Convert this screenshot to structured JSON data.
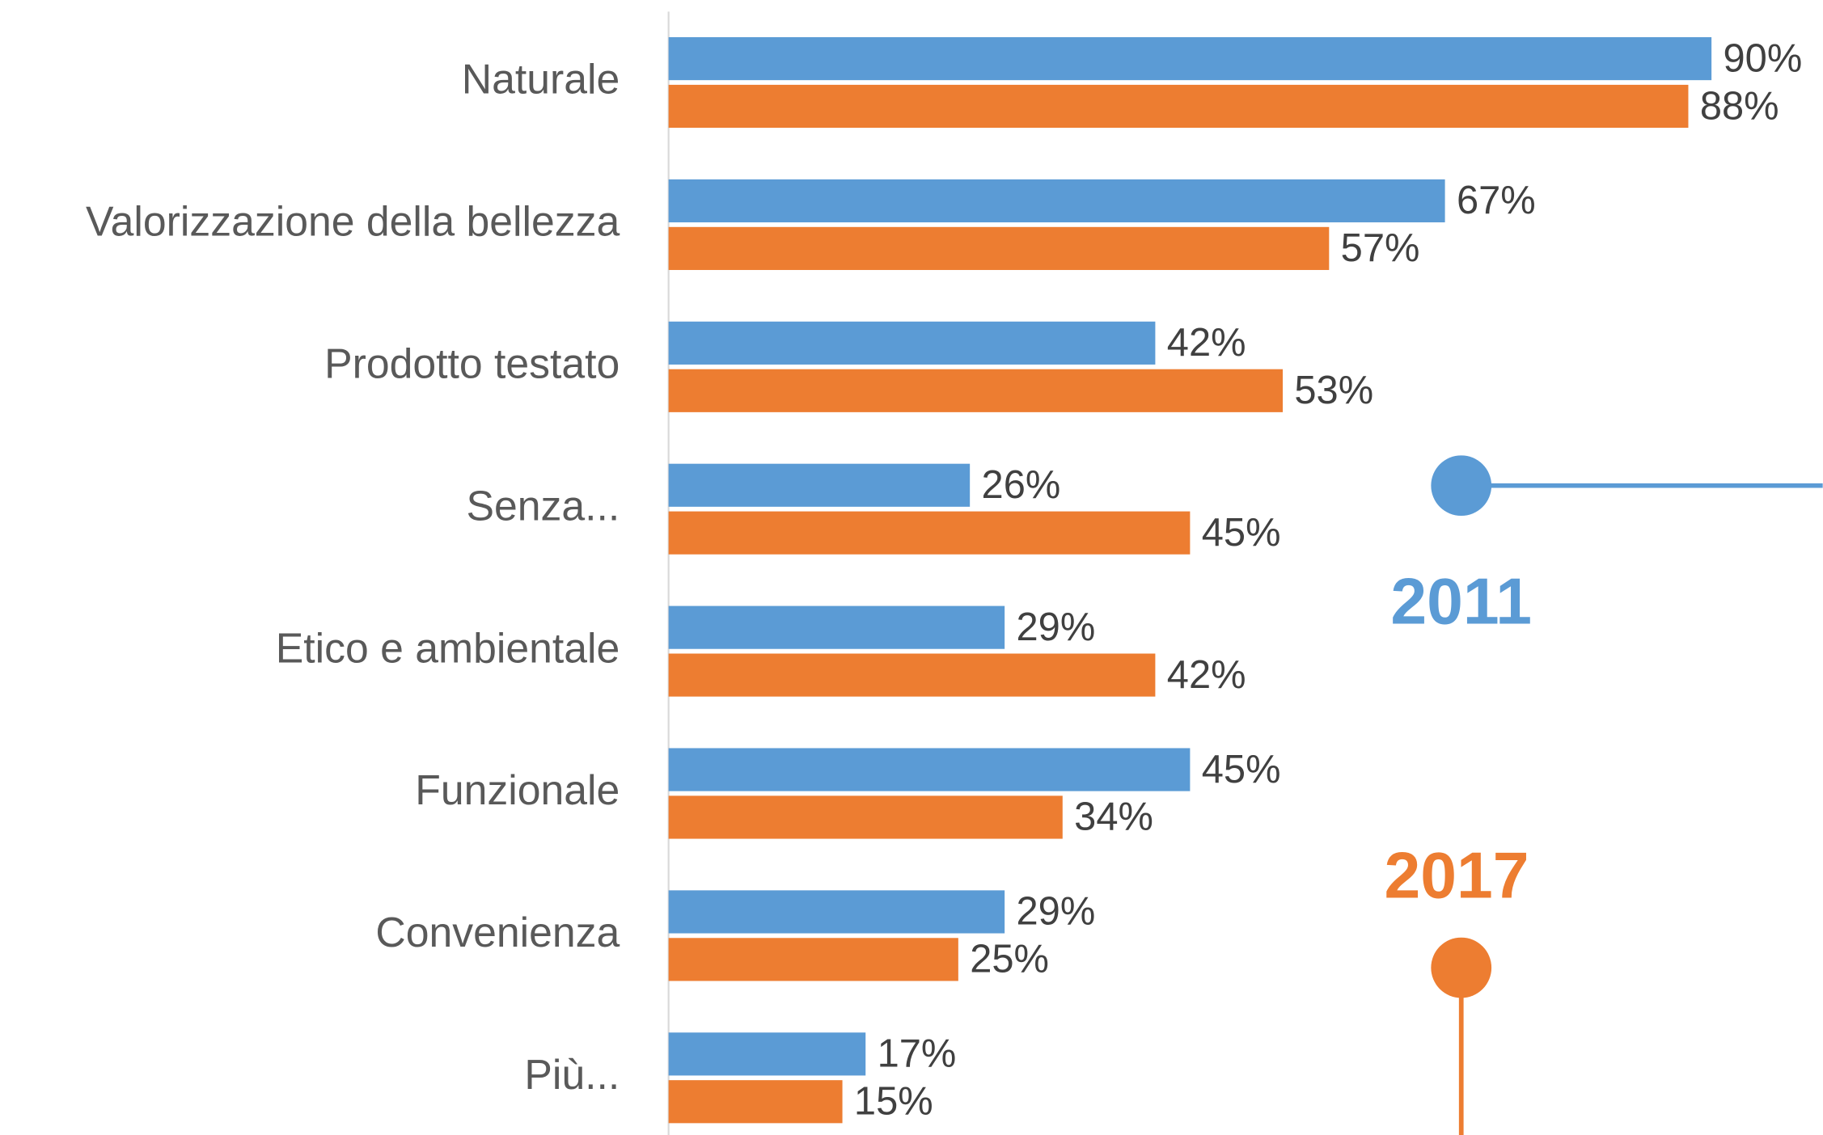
{
  "chart_data": {
    "type": "bar",
    "orientation": "horizontal",
    "categories": [
      "Naturale",
      "Valorizzazione della bellezza",
      "Prodotto testato",
      "Senza...",
      "Etico e ambientale",
      "Funzionale",
      "Convenienza",
      "Più..."
    ],
    "series": [
      {
        "name": "2011",
        "color": "#5b9bd5",
        "values": [
          90,
          67,
          42,
          26,
          29,
          45,
          29,
          17
        ],
        "value_labels": [
          "90%",
          "67%",
          "42%",
          "26%",
          "29%",
          "45%",
          "29%",
          "17%"
        ]
      },
      {
        "name": "2017",
        "color": "#ed7d31",
        "values": [
          88,
          57,
          53,
          45,
          42,
          34,
          25,
          15
        ],
        "value_labels": [
          "88%",
          "57%",
          "53%",
          "45%",
          "42%",
          "34%",
          "25%",
          "15%"
        ]
      }
    ],
    "xlim": [
      0,
      100
    ]
  }
}
